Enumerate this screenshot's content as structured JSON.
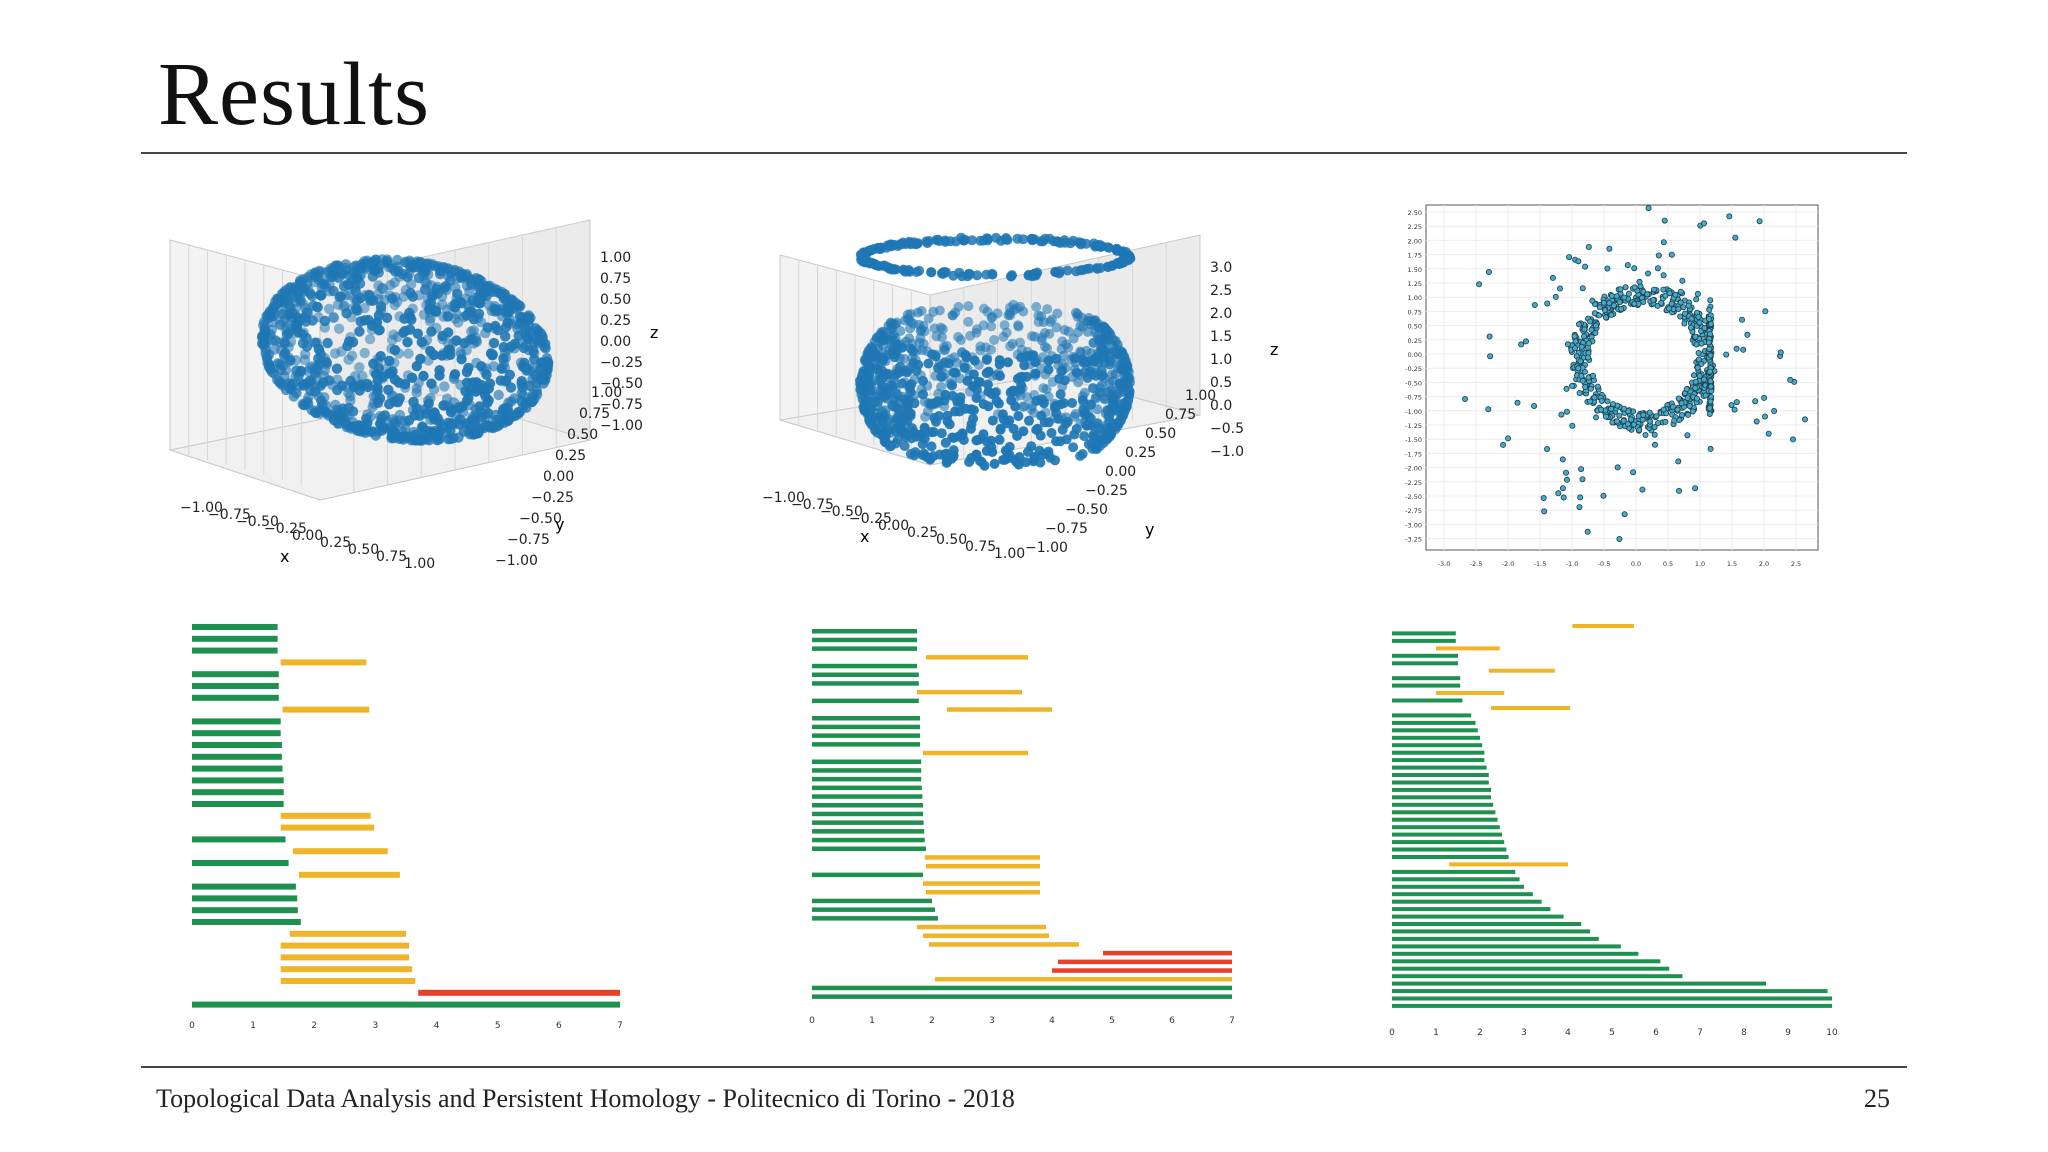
{
  "slide": {
    "title": "Results",
    "footer": "Topological Data Analysis and Persistent Homology - Politecnico di Torino - 2018",
    "page_number": "25"
  },
  "colors": {
    "points": "#1f77b4",
    "h0_bar": "#1e9150",
    "h1_bar": "#f0b429",
    "h2_bar": "#e8402a",
    "scatter_fill": "#46a9c9"
  },
  "sphere_plot": {
    "x_label": "x",
    "y_label": "y",
    "z_label": "z",
    "x_ticks": [
      "−1.00",
      "−0.75",
      "−0.50",
      "−0.25",
      "0.00",
      "0.25",
      "0.50",
      "0.75",
      "1.00"
    ],
    "y_ticks": [
      "−1.00",
      "−0.75",
      "−0.50",
      "−0.25",
      "0.00",
      "0.25",
      "0.50",
      "0.75",
      "1.00"
    ],
    "z_ticks": [
      "1.00",
      "0.75",
      "0.50",
      "0.25",
      "0.00",
      "−0.25",
      "−0.50",
      "−0.75",
      "−1.00"
    ]
  },
  "torus_plot": {
    "x_label": "x",
    "y_label": "y",
    "z_label": "z",
    "x_ticks": [
      "−1.00",
      "−0.75",
      "−0.50",
      "−0.25",
      "0.00",
      "0.25",
      "0.50",
      "0.75",
      "1.00"
    ],
    "y_ticks": [
      "−1.00",
      "−0.75",
      "−0.50",
      "−0.25",
      "0.00",
      "0.25",
      "0.50",
      "0.75",
      "1.00"
    ],
    "z_ticks": [
      "3.0",
      "2.5",
      "2.0",
      "1.5",
      "1.0",
      "0.5",
      "0.0",
      "−0.5",
      "−1.0"
    ]
  },
  "scatter_2d": {
    "y_ticks": [
      "2.50",
      "2.25",
      "2.00",
      "1.75",
      "1.50",
      "1.25",
      "1.00",
      "0.75",
      "0.50",
      "0.25",
      "0.00",
      "-0.25",
      "-0.50",
      "-0.75",
      "-1.00",
      "-1.25",
      "-1.50",
      "-1.75",
      "-2.00",
      "-2.25",
      "-2.50",
      "-2.75",
      "-3.00",
      "-3.25"
    ],
    "x_ticks": [
      "-3.0",
      "-2.5",
      "-2.0",
      "-1.5",
      "-1.0",
      "-0.5",
      "0.0",
      "0.5",
      "1.0",
      "1.5",
      "2.0",
      "2.5"
    ]
  },
  "chart_data": [
    {
      "type": "bar",
      "chart": "barcode-1",
      "x_ticks": [
        "0",
        "1",
        "2",
        "3",
        "4",
        "5",
        "6",
        "7"
      ],
      "xlim": [
        0,
        7
      ],
      "bars": [
        {
          "dim": 0,
          "start": 0,
          "end": 1.4
        },
        {
          "dim": 0,
          "start": 0,
          "end": 1.4
        },
        {
          "dim": 0,
          "start": 0,
          "end": 1.4
        },
        {
          "dim": 1,
          "start": 1.45,
          "end": 2.85
        },
        {
          "dim": 0,
          "start": 0,
          "end": 1.42
        },
        {
          "dim": 0,
          "start": 0,
          "end": 1.42
        },
        {
          "dim": 0,
          "start": 0,
          "end": 1.42
        },
        {
          "dim": 1,
          "start": 1.48,
          "end": 2.9
        },
        {
          "dim": 0,
          "start": 0,
          "end": 1.45
        },
        {
          "dim": 0,
          "start": 0,
          "end": 1.45
        },
        {
          "dim": 0,
          "start": 0,
          "end": 1.47
        },
        {
          "dim": 0,
          "start": 0,
          "end": 1.47
        },
        {
          "dim": 0,
          "start": 0,
          "end": 1.48
        },
        {
          "dim": 0,
          "start": 0,
          "end": 1.5
        },
        {
          "dim": 0,
          "start": 0,
          "end": 1.5
        },
        {
          "dim": 0,
          "start": 0,
          "end": 1.5
        },
        {
          "dim": 1,
          "start": 1.45,
          "end": 2.92
        },
        {
          "dim": 1,
          "start": 1.45,
          "end": 2.98
        },
        {
          "dim": 0,
          "start": 0,
          "end": 1.53
        },
        {
          "dim": 1,
          "start": 1.65,
          "end": 3.2
        },
        {
          "dim": 0,
          "start": 0,
          "end": 1.58
        },
        {
          "dim": 1,
          "start": 1.75,
          "end": 3.4
        },
        {
          "dim": 0,
          "start": 0,
          "end": 1.7
        },
        {
          "dim": 0,
          "start": 0,
          "end": 1.72
        },
        {
          "dim": 0,
          "start": 0,
          "end": 1.73
        },
        {
          "dim": 0,
          "start": 0,
          "end": 1.78
        },
        {
          "dim": 1,
          "start": 1.6,
          "end": 3.5
        },
        {
          "dim": 1,
          "start": 1.45,
          "end": 3.55
        },
        {
          "dim": 1,
          "start": 1.45,
          "end": 3.55
        },
        {
          "dim": 1,
          "start": 1.45,
          "end": 3.6
        },
        {
          "dim": 1,
          "start": 1.45,
          "end": 3.65
        },
        {
          "dim": 2,
          "start": 3.7,
          "end": 7.0
        },
        {
          "dim": 0,
          "start": 0,
          "end": 7.0
        }
      ]
    },
    {
      "type": "bar",
      "chart": "barcode-2",
      "x_ticks": [
        "0",
        "1",
        "2",
        "3",
        "4",
        "5",
        "6",
        "7"
      ],
      "xlim": [
        0,
        7
      ],
      "bars": [
        {
          "dim": 0,
          "start": 0,
          "end": 1.75
        },
        {
          "dim": 0,
          "start": 0,
          "end": 1.75
        },
        {
          "dim": 0,
          "start": 0,
          "end": 1.75
        },
        {
          "dim": 1,
          "start": 1.9,
          "end": 3.6
        },
        {
          "dim": 0,
          "start": 0,
          "end": 1.75
        },
        {
          "dim": 0,
          "start": 0,
          "end": 1.78
        },
        {
          "dim": 0,
          "start": 0,
          "end": 1.78
        },
        {
          "dim": 1,
          "start": 1.75,
          "end": 3.5
        },
        {
          "dim": 0,
          "start": 0,
          "end": 1.78
        },
        {
          "dim": 1,
          "start": 2.25,
          "end": 4.0
        },
        {
          "dim": 0,
          "start": 0,
          "end": 1.8
        },
        {
          "dim": 0,
          "start": 0,
          "end": 1.8
        },
        {
          "dim": 0,
          "start": 0,
          "end": 1.8
        },
        {
          "dim": 0,
          "start": 0,
          "end": 1.8
        },
        {
          "dim": 1,
          "start": 1.85,
          "end": 3.6
        },
        {
          "dim": 0,
          "start": 0,
          "end": 1.82
        },
        {
          "dim": 0,
          "start": 0,
          "end": 1.82
        },
        {
          "dim": 0,
          "start": 0,
          "end": 1.82
        },
        {
          "dim": 0,
          "start": 0,
          "end": 1.83
        },
        {
          "dim": 0,
          "start": 0,
          "end": 1.84
        },
        {
          "dim": 0,
          "start": 0,
          "end": 1.85
        },
        {
          "dim": 0,
          "start": 0,
          "end": 1.85
        },
        {
          "dim": 0,
          "start": 0,
          "end": 1.86
        },
        {
          "dim": 0,
          "start": 0,
          "end": 1.87
        },
        {
          "dim": 0,
          "start": 0,
          "end": 1.88
        },
        {
          "dim": 0,
          "start": 0,
          "end": 1.9
        },
        {
          "dim": 1,
          "start": 1.88,
          "end": 3.8
        },
        {
          "dim": 1,
          "start": 1.9,
          "end": 3.8
        },
        {
          "dim": 0,
          "start": 0,
          "end": 1.85
        },
        {
          "dim": 1,
          "start": 1.85,
          "end": 3.8
        },
        {
          "dim": 1,
          "start": 1.9,
          "end": 3.8
        },
        {
          "dim": 0,
          "start": 0,
          "end": 2.0
        },
        {
          "dim": 0,
          "start": 0,
          "end": 2.05
        },
        {
          "dim": 0,
          "start": 0,
          "end": 2.1
        },
        {
          "dim": 1,
          "start": 1.75,
          "end": 3.9
        },
        {
          "dim": 1,
          "start": 1.85,
          "end": 3.95
        },
        {
          "dim": 1,
          "start": 1.95,
          "end": 4.45
        },
        {
          "dim": 2,
          "start": 4.85,
          "end": 7.0
        },
        {
          "dim": 2,
          "start": 4.1,
          "end": 7.0
        },
        {
          "dim": 2,
          "start": 4.0,
          "end": 7.0
        },
        {
          "dim": 1,
          "start": 2.05,
          "end": 7.0
        },
        {
          "dim": 0,
          "start": 0,
          "end": 7.0
        },
        {
          "dim": 0,
          "start": 0,
          "end": 7.0
        }
      ]
    },
    {
      "type": "bar",
      "chart": "barcode-3",
      "x_ticks": [
        "0",
        "1",
        "2",
        "3",
        "4",
        "5",
        "6",
        "7",
        "8",
        "9",
        "10"
      ],
      "xlim": [
        0,
        10
      ],
      "bars": [
        {
          "dim": 1,
          "start": 4.1,
          "end": 5.5
        },
        {
          "dim": 0,
          "start": 0,
          "end": 1.45
        },
        {
          "dim": 0,
          "start": 0,
          "end": 1.45
        },
        {
          "dim": 1,
          "start": 1.0,
          "end": 2.45
        },
        {
          "dim": 0,
          "start": 0,
          "end": 1.5
        },
        {
          "dim": 0,
          "start": 0,
          "end": 1.5
        },
        {
          "dim": 1,
          "start": 2.2,
          "end": 3.7
        },
        {
          "dim": 0,
          "start": 0,
          "end": 1.55
        },
        {
          "dim": 0,
          "start": 0,
          "end": 1.55
        },
        {
          "dim": 1,
          "start": 1.0,
          "end": 2.55
        },
        {
          "dim": 0,
          "start": 0,
          "end": 1.6
        },
        {
          "dim": 1,
          "start": 2.25,
          "end": 4.05
        },
        {
          "dim": 0,
          "start": 0,
          "end": 1.8
        },
        {
          "dim": 0,
          "start": 0,
          "end": 1.9
        },
        {
          "dim": 0,
          "start": 0,
          "end": 1.95
        },
        {
          "dim": 0,
          "start": 0,
          "end": 2.0
        },
        {
          "dim": 0,
          "start": 0,
          "end": 2.05
        },
        {
          "dim": 0,
          "start": 0,
          "end": 2.1
        },
        {
          "dim": 0,
          "start": 0,
          "end": 2.1
        },
        {
          "dim": 0,
          "start": 0,
          "end": 2.15
        },
        {
          "dim": 0,
          "start": 0,
          "end": 2.2
        },
        {
          "dim": 0,
          "start": 0,
          "end": 2.2
        },
        {
          "dim": 0,
          "start": 0,
          "end": 2.25
        },
        {
          "dim": 0,
          "start": 0,
          "end": 2.25
        },
        {
          "dim": 0,
          "start": 0,
          "end": 2.3
        },
        {
          "dim": 0,
          "start": 0,
          "end": 2.35
        },
        {
          "dim": 0,
          "start": 0,
          "end": 2.4
        },
        {
          "dim": 0,
          "start": 0,
          "end": 2.45
        },
        {
          "dim": 0,
          "start": 0,
          "end": 2.5
        },
        {
          "dim": 0,
          "start": 0,
          "end": 2.55
        },
        {
          "dim": 0,
          "start": 0,
          "end": 2.6
        },
        {
          "dim": 0,
          "start": 0,
          "end": 2.65
        },
        {
          "dim": 1,
          "start": 1.3,
          "end": 4.0
        },
        {
          "dim": 0,
          "start": 0,
          "end": 2.8
        },
        {
          "dim": 0,
          "start": 0,
          "end": 2.9
        },
        {
          "dim": 0,
          "start": 0,
          "end": 3.0
        },
        {
          "dim": 0,
          "start": 0,
          "end": 3.2
        },
        {
          "dim": 0,
          "start": 0,
          "end": 3.4
        },
        {
          "dim": 0,
          "start": 0,
          "end": 3.6
        },
        {
          "dim": 0,
          "start": 0,
          "end": 3.9
        },
        {
          "dim": 0,
          "start": 0,
          "end": 4.3
        },
        {
          "dim": 0,
          "start": 0,
          "end": 4.5
        },
        {
          "dim": 0,
          "start": 0,
          "end": 4.7
        },
        {
          "dim": 0,
          "start": 0,
          "end": 5.2
        },
        {
          "dim": 0,
          "start": 0,
          "end": 5.6
        },
        {
          "dim": 0,
          "start": 0,
          "end": 6.1
        },
        {
          "dim": 0,
          "start": 0,
          "end": 6.3
        },
        {
          "dim": 0,
          "start": 0,
          "end": 6.6
        },
        {
          "dim": 0,
          "start": 0,
          "end": 8.5
        },
        {
          "dim": 0,
          "start": 0,
          "end": 9.9
        },
        {
          "dim": 0,
          "start": 0,
          "end": 10.0
        },
        {
          "dim": 0,
          "start": 0,
          "end": 10.0
        }
      ]
    }
  ]
}
